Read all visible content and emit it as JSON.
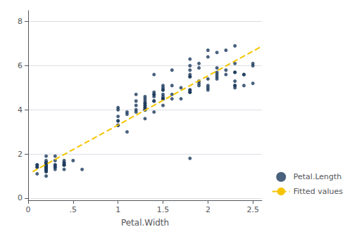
{
  "chart_data": {
    "type": "scatter",
    "xlabel": "Petal.Width",
    "xlim": [
      0,
      2.6
    ],
    "xticks": [
      0,
      {
        "value": 0.5,
        "label": ".5"
      },
      1,
      1.5,
      2,
      2.5
    ],
    "ylim": [
      -0.1,
      8.5
    ],
    "yticks": [
      0,
      2,
      4,
      6,
      8
    ],
    "grid": true,
    "legend": "lower right",
    "series": [
      {
        "name": "Petal.Length",
        "type": "scatter",
        "color": "#1b3a5c",
        "marker": "circle",
        "x": [
          0.2,
          0.2,
          0.2,
          0.2,
          0.2,
          0.4,
          0.3,
          0.2,
          0.2,
          0.1,
          0.2,
          0.2,
          0.1,
          0.1,
          0.2,
          0.4,
          0.4,
          0.3,
          0.3,
          0.3,
          0.2,
          0.4,
          0.2,
          0.5,
          0.2,
          0.2,
          0.4,
          0.2,
          0.2,
          0.2,
          0.2,
          0.4,
          0.1,
          0.2,
          0.2,
          0.2,
          0.2,
          0.1,
          0.2,
          0.3,
          0.3,
          0.2,
          0.6,
          0.4,
          0.3,
          0.2,
          0.2,
          0.2,
          0.2,
          0.2,
          1.4,
          1.5,
          1.5,
          1.3,
          1.5,
          1.3,
          1.6,
          1.0,
          1.3,
          1.4,
          1.0,
          1.5,
          1.0,
          1.4,
          1.3,
          1.4,
          1.5,
          1.0,
          1.5,
          1.1,
          1.8,
          1.3,
          1.5,
          1.2,
          1.3,
          1.4,
          1.4,
          1.7,
          1.5,
          1.0,
          1.1,
          1.0,
          1.2,
          1.6,
          1.5,
          1.6,
          1.5,
          1.3,
          1.3,
          1.3,
          1.2,
          1.4,
          1.2,
          1.0,
          1.3,
          1.2,
          1.3,
          1.3,
          1.1,
          1.3,
          2.5,
          1.9,
          2.1,
          1.8,
          2.2,
          2.1,
          1.7,
          1.8,
          1.8,
          2.5,
          2.0,
          1.9,
          2.1,
          2.0,
          2.4,
          2.3,
          1.8,
          2.2,
          2.3,
          1.5,
          2.3,
          2.0,
          2.0,
          1.8,
          2.1,
          1.8,
          1.8,
          1.8,
          2.1,
          1.6,
          1.9,
          2.0,
          2.2,
          1.5,
          1.4,
          2.3,
          2.4,
          1.8,
          1.8,
          2.1,
          2.4,
          2.3,
          1.9,
          2.3,
          2.5,
          2.3,
          1.9,
          2.0,
          2.3,
          1.8
        ],
        "values": [
          1.4,
          1.4,
          1.3,
          1.5,
          1.4,
          1.7,
          1.4,
          1.5,
          1.4,
          1.5,
          1.5,
          1.6,
          1.4,
          1.1,
          1.2,
          1.5,
          1.3,
          1.4,
          1.7,
          1.5,
          1.7,
          1.5,
          1.0,
          1.7,
          1.9,
          1.6,
          1.6,
          1.5,
          1.4,
          1.6,
          1.6,
          1.5,
          1.5,
          1.4,
          1.5,
          1.2,
          1.3,
          1.4,
          1.3,
          1.5,
          1.3,
          1.3,
          1.3,
          1.6,
          1.9,
          1.4,
          1.6,
          1.4,
          1.5,
          1.4,
          4.7,
          4.5,
          4.9,
          4.0,
          4.6,
          4.5,
          4.7,
          3.3,
          4.6,
          3.9,
          3.5,
          4.2,
          4.0,
          4.7,
          3.6,
          4.4,
          4.5,
          4.1,
          4.5,
          3.9,
          4.8,
          4.0,
          4.9,
          4.7,
          4.3,
          4.4,
          4.8,
          5.0,
          4.5,
          3.5,
          3.8,
          3.7,
          3.9,
          5.1,
          4.5,
          4.5,
          4.7,
          4.4,
          4.1,
          4.0,
          4.4,
          4.6,
          4.0,
          3.3,
          4.2,
          4.2,
          4.2,
          4.3,
          3.0,
          4.1,
          6.0,
          5.1,
          5.9,
          5.6,
          5.8,
          6.6,
          4.5,
          6.3,
          5.8,
          6.1,
          5.1,
          5.3,
          5.5,
          5.0,
          5.1,
          5.3,
          5.5,
          6.7,
          6.9,
          5.0,
          5.7,
          4.9,
          6.7,
          4.9,
          5.7,
          6.0,
          4.8,
          4.9,
          5.6,
          5.8,
          6.1,
          6.4,
          5.6,
          5.1,
          5.6,
          6.1,
          5.6,
          5.5,
          4.8,
          5.4,
          5.6,
          5.1,
          5.9,
          5.7,
          5.2,
          5.0,
          5.2,
          5.4,
          5.1,
          1.8
        ]
      },
      {
        "name": "Fitted values",
        "type": "line",
        "color": "#f5c400",
        "line_style": "dashed",
        "x": [
          0.05,
          2.6
        ],
        "values": [
          1.195055,
          6.881402
        ]
      }
    ]
  }
}
